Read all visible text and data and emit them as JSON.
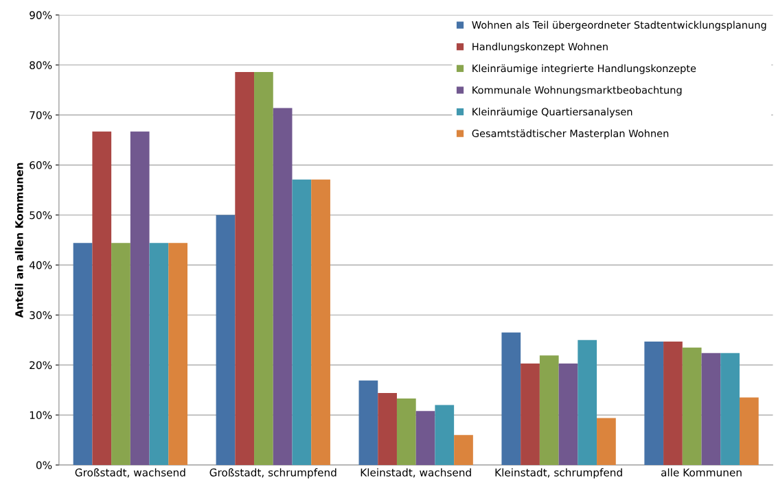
{
  "chart_data": {
    "type": "bar",
    "ylabel": "Anteil an allen Kommunen",
    "categories": [
      "Großstadt, wachsend",
      "Großstadt, schrumpfend",
      "Kleinstadt, wachsend",
      "Kleinstadt, schrumpfend",
      "alle Kommunen"
    ],
    "series": [
      {
        "name": "Wohnen als Teil übergeordneter Stadtentwicklungsplanung",
        "color": "#4572a7",
        "values": [
          44.4,
          50.0,
          16.9,
          26.5,
          24.7
        ]
      },
      {
        "name": "Handlungskonzept Wohnen",
        "color": "#aa4643",
        "values": [
          66.7,
          78.6,
          14.4,
          20.3,
          24.7
        ]
      },
      {
        "name": "Kleinräumige integrierte Handlungskonzepte",
        "color": "#89a54e",
        "values": [
          44.4,
          78.6,
          13.3,
          21.9,
          23.5
        ]
      },
      {
        "name": "Kommunale Wohnungsmarktbeobachtung",
        "color": "#71588f",
        "values": [
          66.7,
          71.4,
          10.8,
          20.3,
          22.4
        ]
      },
      {
        "name": "Kleinräumige Quartiersanalysen",
        "color": "#4198af",
        "values": [
          44.4,
          57.1,
          12.0,
          25.0,
          22.4
        ]
      },
      {
        "name": "Gesamtstädtischer Masterplan Wohnen",
        "color": "#db843d",
        "values": [
          44.4,
          57.1,
          6.0,
          9.4,
          13.5
        ]
      }
    ],
    "ylim": [
      0,
      90
    ],
    "yticks": [
      {
        "value": 0,
        "label": "0%"
      },
      {
        "value": 10,
        "label": "10%"
      },
      {
        "value": 20,
        "label": "20%"
      },
      {
        "value": 30,
        "label": "30%"
      },
      {
        "value": 40,
        "label": "40%"
      },
      {
        "value": 50,
        "label": "50%"
      },
      {
        "value": 60,
        "label": "60%"
      },
      {
        "value": 70,
        "label": "70%"
      },
      {
        "value": 80,
        "label": "80%"
      },
      {
        "value": 90,
        "label": "90%"
      }
    ],
    "grid": "y",
    "legend": "top right"
  }
}
